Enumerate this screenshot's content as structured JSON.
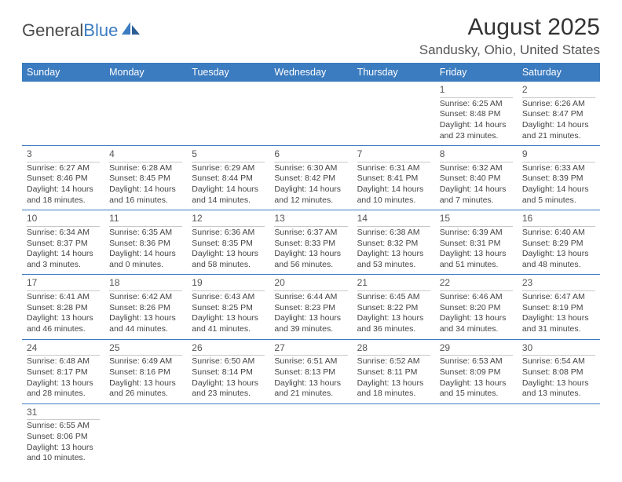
{
  "logo": {
    "text_a": "General",
    "text_b": "Blue"
  },
  "title": "August 2025",
  "location": "Sandusky, Ohio, United States",
  "colors": {
    "header_bg": "#3b7bbf",
    "header_text": "#ffffff",
    "row_border": "#3b7bbf",
    "daynum_border": "#c9c9c9",
    "text": "#444444",
    "title_color": "#333333"
  },
  "day_headers": [
    "Sunday",
    "Monday",
    "Tuesday",
    "Wednesday",
    "Thursday",
    "Friday",
    "Saturday"
  ],
  "weeks": [
    [
      null,
      null,
      null,
      null,
      null,
      {
        "n": "1",
        "sunrise": "6:25 AM",
        "sunset": "8:48 PM",
        "daylight": "14 hours and 23 minutes."
      },
      {
        "n": "2",
        "sunrise": "6:26 AM",
        "sunset": "8:47 PM",
        "daylight": "14 hours and 21 minutes."
      }
    ],
    [
      {
        "n": "3",
        "sunrise": "6:27 AM",
        "sunset": "8:46 PM",
        "daylight": "14 hours and 18 minutes."
      },
      {
        "n": "4",
        "sunrise": "6:28 AM",
        "sunset": "8:45 PM",
        "daylight": "14 hours and 16 minutes."
      },
      {
        "n": "5",
        "sunrise": "6:29 AM",
        "sunset": "8:44 PM",
        "daylight": "14 hours and 14 minutes."
      },
      {
        "n": "6",
        "sunrise": "6:30 AM",
        "sunset": "8:42 PM",
        "daylight": "14 hours and 12 minutes."
      },
      {
        "n": "7",
        "sunrise": "6:31 AM",
        "sunset": "8:41 PM",
        "daylight": "14 hours and 10 minutes."
      },
      {
        "n": "8",
        "sunrise": "6:32 AM",
        "sunset": "8:40 PM",
        "daylight": "14 hours and 7 minutes."
      },
      {
        "n": "9",
        "sunrise": "6:33 AM",
        "sunset": "8:39 PM",
        "daylight": "14 hours and 5 minutes."
      }
    ],
    [
      {
        "n": "10",
        "sunrise": "6:34 AM",
        "sunset": "8:37 PM",
        "daylight": "14 hours and 3 minutes."
      },
      {
        "n": "11",
        "sunrise": "6:35 AM",
        "sunset": "8:36 PM",
        "daylight": "14 hours and 0 minutes."
      },
      {
        "n": "12",
        "sunrise": "6:36 AM",
        "sunset": "8:35 PM",
        "daylight": "13 hours and 58 minutes."
      },
      {
        "n": "13",
        "sunrise": "6:37 AM",
        "sunset": "8:33 PM",
        "daylight": "13 hours and 56 minutes."
      },
      {
        "n": "14",
        "sunrise": "6:38 AM",
        "sunset": "8:32 PM",
        "daylight": "13 hours and 53 minutes."
      },
      {
        "n": "15",
        "sunrise": "6:39 AM",
        "sunset": "8:31 PM",
        "daylight": "13 hours and 51 minutes."
      },
      {
        "n": "16",
        "sunrise": "6:40 AM",
        "sunset": "8:29 PM",
        "daylight": "13 hours and 48 minutes."
      }
    ],
    [
      {
        "n": "17",
        "sunrise": "6:41 AM",
        "sunset": "8:28 PM",
        "daylight": "13 hours and 46 minutes."
      },
      {
        "n": "18",
        "sunrise": "6:42 AM",
        "sunset": "8:26 PM",
        "daylight": "13 hours and 44 minutes."
      },
      {
        "n": "19",
        "sunrise": "6:43 AM",
        "sunset": "8:25 PM",
        "daylight": "13 hours and 41 minutes."
      },
      {
        "n": "20",
        "sunrise": "6:44 AM",
        "sunset": "8:23 PM",
        "daylight": "13 hours and 39 minutes."
      },
      {
        "n": "21",
        "sunrise": "6:45 AM",
        "sunset": "8:22 PM",
        "daylight": "13 hours and 36 minutes."
      },
      {
        "n": "22",
        "sunrise": "6:46 AM",
        "sunset": "8:20 PM",
        "daylight": "13 hours and 34 minutes."
      },
      {
        "n": "23",
        "sunrise": "6:47 AM",
        "sunset": "8:19 PM",
        "daylight": "13 hours and 31 minutes."
      }
    ],
    [
      {
        "n": "24",
        "sunrise": "6:48 AM",
        "sunset": "8:17 PM",
        "daylight": "13 hours and 28 minutes."
      },
      {
        "n": "25",
        "sunrise": "6:49 AM",
        "sunset": "8:16 PM",
        "daylight": "13 hours and 26 minutes."
      },
      {
        "n": "26",
        "sunrise": "6:50 AM",
        "sunset": "8:14 PM",
        "daylight": "13 hours and 23 minutes."
      },
      {
        "n": "27",
        "sunrise": "6:51 AM",
        "sunset": "8:13 PM",
        "daylight": "13 hours and 21 minutes."
      },
      {
        "n": "28",
        "sunrise": "6:52 AM",
        "sunset": "8:11 PM",
        "daylight": "13 hours and 18 minutes."
      },
      {
        "n": "29",
        "sunrise": "6:53 AM",
        "sunset": "8:09 PM",
        "daylight": "13 hours and 15 minutes."
      },
      {
        "n": "30",
        "sunrise": "6:54 AM",
        "sunset": "8:08 PM",
        "daylight": "13 hours and 13 minutes."
      }
    ],
    [
      {
        "n": "31",
        "sunrise": "6:55 AM",
        "sunset": "8:06 PM",
        "daylight": "13 hours and 10 minutes."
      },
      null,
      null,
      null,
      null,
      null,
      null
    ]
  ],
  "labels": {
    "sunrise": "Sunrise:",
    "sunset": "Sunset:",
    "daylight": "Daylight:"
  }
}
